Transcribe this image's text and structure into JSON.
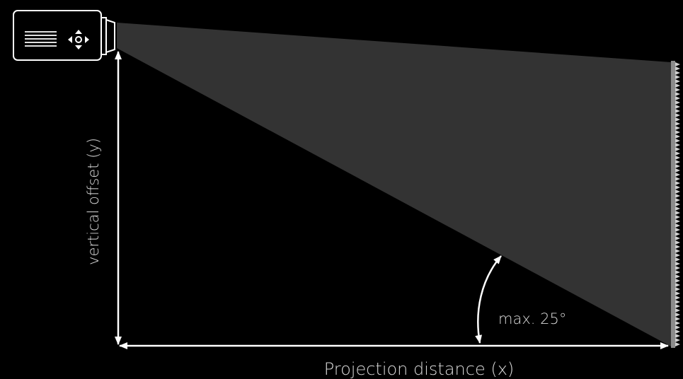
{
  "labels": {
    "vertical_offset": "vertical offset (y)",
    "projection_distance": "Projection distance (x)",
    "max_angle": "max. 25°"
  },
  "colors": {
    "background": "#000000",
    "beam": "#333333",
    "lines": "#ffffff",
    "text": "#d9d9d9",
    "screen": "#8c8c8c"
  },
  "icons": [
    "projector-icon",
    "menu-lines-icon",
    "navigation-pad-icon",
    "projection-screen-icon"
  ]
}
